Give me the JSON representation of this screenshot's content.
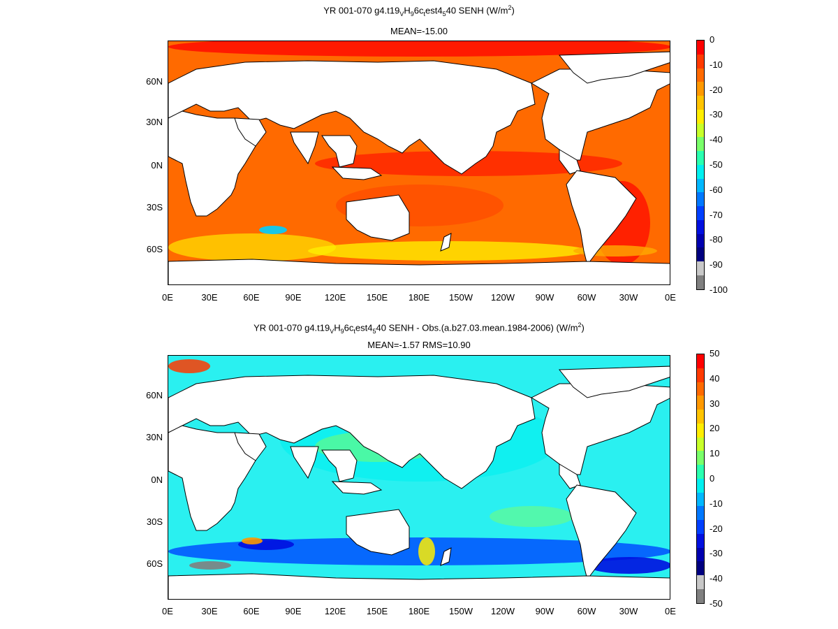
{
  "panels": [
    {
      "title_parts": [
        "YR 001-070 g4.t19",
        "V",
        "H",
        "9",
        "6c",
        "t",
        "est4",
        "5",
        "40  SENH (W/m",
        "2",
        ")"
      ],
      "subtitle": "MEAN=-15.00",
      "y_ticks": [
        "60N",
        "30N",
        "0N",
        "30S",
        "60S"
      ],
      "x_ticks": [
        "0E",
        "30E",
        "60E",
        "90E",
        "120E",
        "150E",
        "180E",
        "150W",
        "120W",
        "90W",
        "60W",
        "30W",
        "0E"
      ],
      "colorbar_ticks": [
        "0",
        "-10",
        "-20",
        "-30",
        "-40",
        "-50",
        "-60",
        "-70",
        "-80",
        "-90",
        "-100"
      ],
      "colorbar_colors": [
        "#ff0000",
        "#ff3a00",
        "#ff6a00",
        "#ff9900",
        "#ffc400",
        "#ffee00",
        "#c8ff2a",
        "#7aff6a",
        "#2affb0",
        "#00f0f0",
        "#00b8ff",
        "#0078ff",
        "#0040ff",
        "#0010e0",
        "#0000b0",
        "#000080",
        "#c8c8c8",
        "#808080"
      ]
    },
    {
      "title_parts": [
        "YR 001-070 g4.t19",
        "V",
        "H",
        "9",
        "6c",
        "t",
        "est4",
        "5",
        "40 SENH - Obs.(a.b27.03.mean.1984-2006) (W/m",
        "2",
        ")"
      ],
      "subtitle": "MEAN=-1.57 RMS=10.90",
      "y_ticks": [
        "60N",
        "30N",
        "0N",
        "30S",
        "60S"
      ],
      "x_ticks": [
        "0E",
        "30E",
        "60E",
        "90E",
        "120E",
        "150E",
        "180E",
        "150W",
        "120W",
        "90W",
        "60W",
        "30W",
        "0E"
      ],
      "colorbar_ticks": [
        "50",
        "40",
        "30",
        "20",
        "10",
        "0",
        "-10",
        "-20",
        "-30",
        "-40",
        "-50"
      ],
      "colorbar_colors": [
        "#ff0000",
        "#ff3a00",
        "#ff6a00",
        "#ff9900",
        "#ffc400",
        "#ffee00",
        "#c8ff2a",
        "#7aff6a",
        "#2affb0",
        "#00f0f0",
        "#00b8ff",
        "#0078ff",
        "#0040ff",
        "#0010e0",
        "#0000b0",
        "#000080",
        "#c8c8c8",
        "#808080"
      ]
    }
  ],
  "palette": {
    "land": "#ffffff",
    "coast": "#000000",
    "top_ocean_base": "#ff6a00",
    "bottom_ocean_base": "#2af0f0"
  }
}
